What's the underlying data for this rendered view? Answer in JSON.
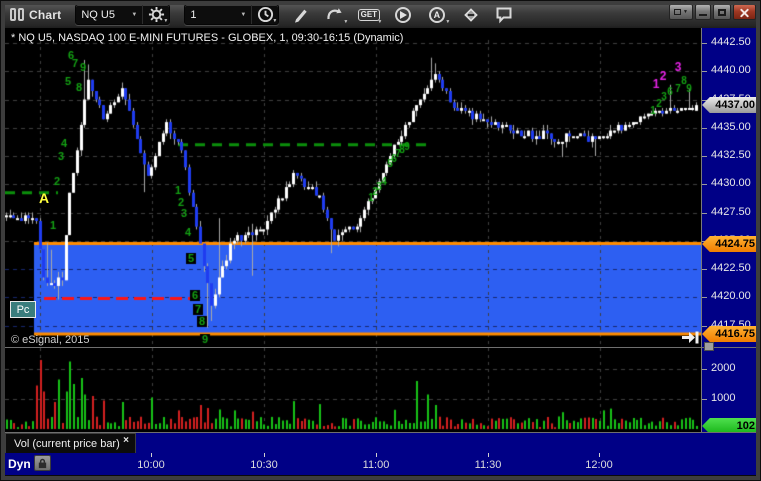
{
  "window": {
    "app_title": "Chart"
  },
  "toolbar": {
    "symbol": "NQ U5",
    "interval": "1",
    "get_label": "GET",
    "a_label": "A",
    "caret": "▼"
  },
  "chart": {
    "title": "* NQ U5, NASDAQ 100 E-MINI FUTURES - GLOBEX, 1, 09:30-16:15 (Dynamic)",
    "copyright": "© eSignal, 2015",
    "indicator_badge": "Pc",
    "a_marker": "A",
    "dyn_label": "Dyn"
  },
  "price_axis": {
    "ticks": [
      "4442.50",
      "4440.00",
      "4437.50",
      "4435.00",
      "4432.50",
      "4430.00",
      "4427.50",
      "4425.00",
      "4422.50",
      "4420.00",
      "4417.50"
    ],
    "current_tag": "4437.00",
    "band_top_tag": "4424.75",
    "band_bottom_tag": "4416.75"
  },
  "volume_axis": {
    "ticks": [
      "2000",
      "1000"
    ],
    "current_tag": "102"
  },
  "time_axis": {
    "labels": [
      "10:00",
      "10:30",
      "11:00",
      "11:30",
      "12:00"
    ]
  },
  "volume_tab": {
    "label": "Vol (current price bar)",
    "close_label": "×"
  },
  "chart_data": {
    "type": "candlestick",
    "interval_minutes": 1,
    "session_start": "09:30",
    "visible_price_range": [
      4416.75,
      4442.5
    ],
    "grid_step": 2.5,
    "volume_grid": [
      1000,
      2000
    ],
    "price_levels": {
      "current": 4437.0,
      "band_top": 4424.75,
      "band_bottom": 4416.75,
      "red_dashed": 4419.9,
      "green_dashed_short": 4429.25,
      "green_dashed_long": 4433.5
    },
    "start_price": 4427.2,
    "path_segments": [
      [
        9,
        4427.0,
        0.8
      ],
      [
        2,
        4421.8,
        0.3
      ],
      [
        5,
        4421.3,
        0.9
      ],
      [
        2,
        4429.5,
        0.4
      ],
      [
        5,
        4439.3,
        0.7
      ],
      [
        4,
        4436.0,
        0.6
      ],
      [
        5,
        4438.3,
        0.6
      ],
      [
        7,
        4430.8,
        0.7
      ],
      [
        5,
        4435.3,
        0.6
      ],
      [
        4,
        4433.0,
        0.6
      ],
      [
        4,
        4426.0,
        0.6
      ],
      [
        4,
        4419.2,
        0.6
      ],
      [
        6,
        4425.5,
        0.9
      ],
      [
        9,
        4426.3,
        0.9
      ],
      [
        7,
        4430.8,
        0.6
      ],
      [
        7,
        4428.8,
        0.7
      ],
      [
        4,
        4425.2,
        0.5
      ],
      [
        6,
        4426.2,
        0.7
      ],
      [
        9,
        4432.3,
        0.6
      ],
      [
        9,
        4438.3,
        0.6
      ],
      [
        3,
        4439.9,
        0.4
      ],
      [
        5,
        4436.8,
        0.5
      ],
      [
        15,
        4435.0,
        0.8
      ],
      [
        15,
        4434.0,
        0.8
      ],
      [
        8,
        4433.9,
        0.7
      ],
      [
        14,
        4436.2,
        0.6
      ],
      [
        13,
        4437.0,
        0.5
      ]
    ],
    "wick_events": [
      [
        11,
        "hi",
        4424.8
      ],
      [
        12,
        "hi",
        4424.2
      ],
      [
        14,
        "lo",
        4419.8
      ],
      [
        21,
        "hi",
        4441.0
      ],
      [
        22,
        "hi",
        4440.6
      ],
      [
        37,
        "lo",
        4429.3
      ],
      [
        54,
        "lo",
        4417.3
      ],
      [
        55,
        "lo",
        4417.9
      ],
      [
        57,
        "hi",
        4427.0
      ],
      [
        66,
        "lo",
        4421.9
      ],
      [
        87,
        "lo",
        4423.9
      ],
      [
        114,
        "hi",
        4441.2
      ],
      [
        115,
        "hi",
        4440.7
      ],
      [
        149,
        "lo",
        4432.4
      ],
      [
        158,
        "lo",
        4432.5
      ],
      [
        178,
        "hi",
        4438.8
      ],
      [
        183,
        "hi",
        4438.4
      ]
    ],
    "volume_spikes": {
      "8": 1450,
      "9": 2300,
      "10": 1250,
      "13": 900,
      "14": 1650,
      "16": 1250,
      "17": 2250,
      "18": 1500,
      "20": 1700,
      "21": 1150,
      "23": 1100,
      "26": 950,
      "31": 900,
      "39": 1050,
      "46": 620,
      "52": 800,
      "54": 700,
      "57": 650,
      "61": 620,
      "66": 580,
      "77": 930,
      "84": 830,
      "104": 640,
      "110": 1600,
      "113": 1150,
      "115": 800,
      "149": 560,
      "160": 620,
      "162": 680
    },
    "last_volume": 102,
    "td_numbers": {
      "leg_open_rally": [
        [
          "1",
          52,
          224
        ],
        [
          "2",
          56,
          180
        ],
        [
          "3",
          60,
          155
        ],
        [
          "4",
          63,
          142
        ],
        [
          "5",
          67,
          80
        ],
        [
          "6",
          70,
          54
        ],
        [
          "7",
          74,
          62
        ],
        [
          "8",
          78,
          86
        ],
        [
          "9",
          82,
          66
        ]
      ],
      "leg_decline": [
        [
          "1",
          177,
          189
        ],
        [
          "2",
          180,
          201
        ],
        [
          "3",
          183,
          212
        ],
        [
          "4",
          187,
          231
        ],
        [
          "5",
          190,
          257
        ],
        [
          "6",
          194,
          294
        ],
        [
          "7",
          197,
          308
        ],
        [
          "8",
          201,
          320
        ],
        [
          "9",
          204,
          338
        ]
      ],
      "leg_mid_rally": [
        [
          "1",
          370,
          196
        ],
        [
          "2",
          374,
          190
        ],
        [
          "3",
          378,
          185
        ],
        [
          "4",
          383,
          180
        ],
        [
          "5",
          389,
          162
        ],
        [
          "6",
          393,
          157
        ],
        [
          "7",
          397,
          152
        ],
        [
          "8",
          401,
          148
        ],
        [
          "9",
          406,
          145
        ]
      ],
      "leg_late_green": [
        [
          "1",
          652,
          109
        ],
        [
          "2",
          658,
          102
        ],
        [
          "3",
          663,
          95
        ],
        [
          "6",
          669,
          90
        ],
        [
          "7",
          677,
          87
        ],
        [
          "8",
          683,
          79
        ],
        [
          "9",
          688,
          87
        ]
      ],
      "leg_late_magenta": [
        [
          "1",
          655,
          83
        ],
        [
          "2",
          662,
          75
        ],
        [
          "3",
          677,
          66
        ]
      ]
    }
  },
  "colors": {
    "axis_bg": "#000086",
    "candle_up": "#ffffff",
    "candle_down": "#1f3cf0",
    "wick": "#a8a8a8",
    "band_fill": "#2d5ff2",
    "band_border": "#ff8c00",
    "red_line": "#ff1414",
    "green_line": "#0b8f0b",
    "td_green": "#13a013",
    "td_magenta": "#e822e8",
    "vol_up": "#17c217",
    "vol_down": "#d42020",
    "grid": "#3e3e3e",
    "grid_in_band": "#16266e"
  }
}
